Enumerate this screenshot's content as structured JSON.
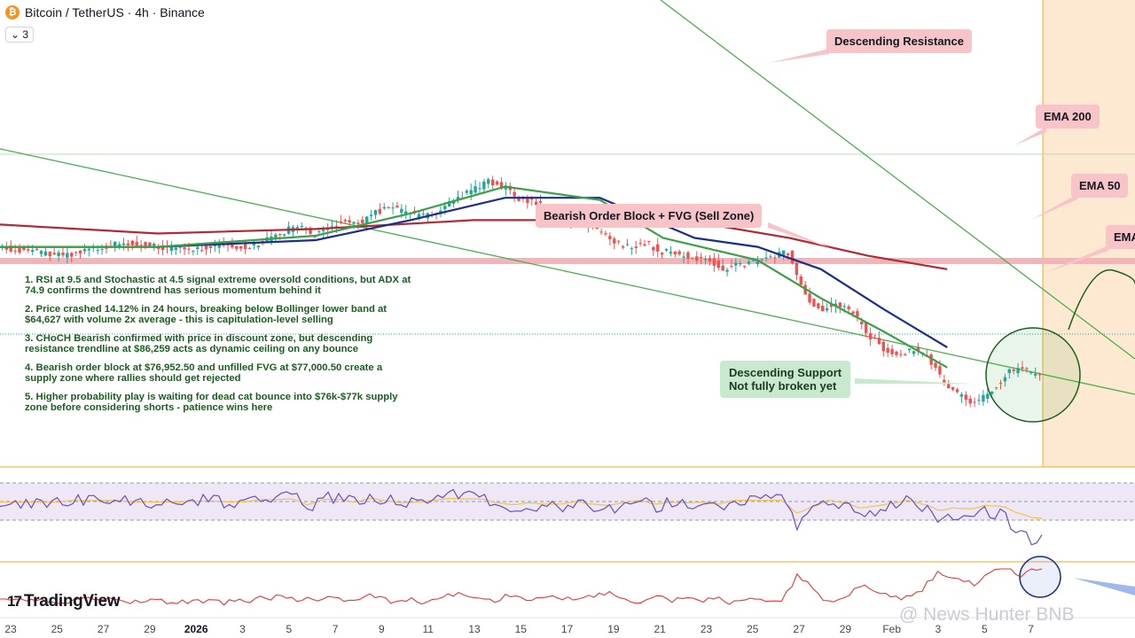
{
  "header": {
    "title": "Bitcoin / TetherUS · 4h · Binance",
    "logo_icon": "bitcoin-icon",
    "logo_glyph": "₿",
    "layers_button": "3"
  },
  "labels": {
    "descending_resistance": "Descending Resistance",
    "ema200": "EMA 200",
    "ema50": "EMA 50",
    "ema_cut": "EMA",
    "order_block": "Bearish Order Block + FVG (Sell Zone)",
    "support_line1": "Descending Support",
    "support_line2": "Not fully broken yet"
  },
  "notes": [
    "1. RSI at 9.5 and Stochastic at 4.5 signal extreme oversold conditions, but ADX at 74.9 confirms the downtrend has serious momentum behind it",
    "2. Price crashed 14.12% in 24 hours, breaking below Bollinger lower band at $64,627 with volume 2x average - this is capitulation-level selling",
    "3. CHoCH Bearish confirmed with price in discount zone, but descending resistance trendline at $86,259 acts as dynamic ceiling on any bounce",
    "4. Bearish order block at $76,952.50 and unfilled FVG at $77,000.50 create a supply zone where rallies should get rejected",
    "5. Higher probability play is waiting for dead cat bounce into $76k-$77k supply zone before considering shorts - patience wins here"
  ],
  "branding": {
    "tradingview": "TradingView",
    "tv_mark": "17",
    "watermark": "@ News Hunter BNB"
  },
  "chart_data": {
    "type": "line",
    "x_ticks": [
      "23",
      "25",
      "27",
      "29",
      "2026",
      "3",
      "5",
      "7",
      "9",
      "11",
      "13",
      "15",
      "17",
      "19",
      "21",
      "23",
      "25",
      "27",
      "29",
      "Feb",
      "3",
      "5",
      "7"
    ],
    "x_ticks_bold": [
      "2026"
    ],
    "price_path": [
      [
        0,
        0.5
      ],
      [
        2,
        0.48
      ],
      [
        4,
        0.46
      ],
      [
        6,
        0.49
      ],
      [
        8,
        0.52
      ],
      [
        10,
        0.5
      ],
      [
        12,
        0.49
      ],
      [
        14,
        0.51
      ],
      [
        16,
        0.5
      ],
      [
        18,
        0.56
      ],
      [
        19,
        0.6
      ],
      [
        20,
        0.55
      ],
      [
        22,
        0.62
      ],
      [
        23,
        0.61
      ],
      [
        24,
        0.66
      ],
      [
        25,
        0.67
      ],
      [
        26,
        0.65
      ],
      [
        27,
        0.64
      ],
      [
        28,
        0.66
      ],
      [
        29,
        0.71
      ],
      [
        30,
        0.75
      ],
      [
        31,
        0.79
      ],
      [
        32,
        0.77
      ],
      [
        33,
        0.72
      ],
      [
        34,
        0.7
      ],
      [
        35,
        0.66
      ],
      [
        36,
        0.62
      ],
      [
        37,
        0.62
      ],
      [
        38,
        0.58
      ],
      [
        39,
        0.52
      ],
      [
        40,
        0.5
      ],
      [
        41,
        0.52
      ],
      [
        42,
        0.48
      ],
      [
        43,
        0.47
      ],
      [
        44,
        0.45
      ],
      [
        45,
        0.44
      ],
      [
        46,
        0.4
      ],
      [
        47,
        0.42
      ],
      [
        48,
        0.44
      ],
      [
        49,
        0.46
      ],
      [
        50,
        0.48
      ],
      [
        51,
        0.3
      ],
      [
        52,
        0.22
      ],
      [
        53,
        0.24
      ],
      [
        54,
        0.22
      ],
      [
        55,
        0.12
      ],
      [
        56,
        0.05
      ],
      [
        57,
        0.02
      ],
      [
        58,
        0.04
      ],
      [
        59,
        0.0
      ],
      [
        60,
        -0.12
      ],
      [
        61,
        -0.17
      ],
      [
        62,
        -0.2
      ],
      [
        63,
        -0.14
      ],
      [
        64,
        -0.06
      ],
      [
        65,
        -0.05
      ],
      [
        66,
        -0.08
      ]
    ],
    "ema200": [
      [
        0,
        0.6
      ],
      [
        10,
        0.56
      ],
      [
        20,
        0.58
      ],
      [
        30,
        0.62
      ],
      [
        40,
        0.62
      ],
      [
        45,
        0.6
      ],
      [
        50,
        0.54
      ],
      [
        55,
        0.46
      ],
      [
        60,
        0.4
      ]
    ],
    "ema50": [
      [
        0,
        0.5
      ],
      [
        10,
        0.5
      ],
      [
        20,
        0.53
      ],
      [
        26,
        0.62
      ],
      [
        32,
        0.72
      ],
      [
        38,
        0.72
      ],
      [
        44,
        0.54
      ],
      [
        48,
        0.5
      ],
      [
        52,
        0.4
      ],
      [
        56,
        0.22
      ],
      [
        60,
        0.05
      ]
    ],
    "ema20": [
      [
        0,
        0.5
      ],
      [
        10,
        0.5
      ],
      [
        20,
        0.55
      ],
      [
        26,
        0.65
      ],
      [
        32,
        0.77
      ],
      [
        38,
        0.71
      ],
      [
        42,
        0.54
      ],
      [
        48,
        0.44
      ],
      [
        52,
        0.27
      ],
      [
        56,
        0.12
      ],
      [
        60,
        -0.04
      ]
    ],
    "colors": {
      "up": "#26a69a",
      "down": "#ef5350",
      "ema200": "#b22833",
      "ema50": "#1a2f8c",
      "ema20": "#3ba048",
      "trendline": "#4caf50",
      "order_block": "#f4b4ba",
      "highlight_zone": "#fde9d2",
      "zone_line": "#f5a623",
      "annotation_red": "#f7c5c8",
      "annotation_green": "#c9e9cf"
    },
    "panels": [
      "price",
      "rsi",
      "adx"
    ]
  }
}
